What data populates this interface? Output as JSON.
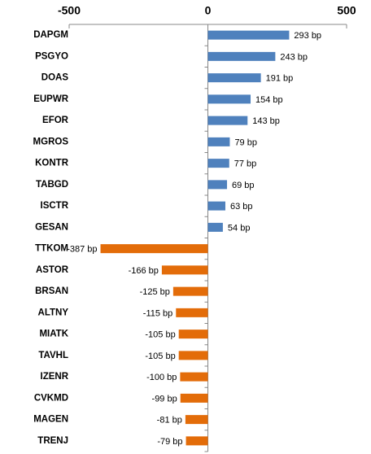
{
  "chart_data": {
    "type": "bar",
    "orientation": "horizontal",
    "categories": [
      "DAPGM",
      "PSGYO",
      "DOAS",
      "EUPWR",
      "EFOR",
      "MGROS",
      "KONTR",
      "TABGD",
      "ISCTR",
      "GESAN",
      "TTKOM",
      "ASTOR",
      "BRSAN",
      "ALTNY",
      "MIATK",
      "TAVHL",
      "IZENR",
      "CVKMD",
      "MAGEN",
      "TRENJ"
    ],
    "values": [
      293,
      243,
      191,
      154,
      143,
      79,
      77,
      69,
      63,
      54,
      -387,
      -166,
      -125,
      -115,
      -105,
      -105,
      -100,
      -99,
      -81,
      -79
    ],
    "value_labels": [
      "293 bp",
      "243 bp",
      "191 bp",
      "154 bp",
      "143 bp",
      "79 bp",
      "77 bp",
      "69 bp",
      "63 bp",
      "54 bp",
      "-387 bp",
      "-166 bp",
      "-125 bp",
      "-115 bp",
      "-105 bp",
      "-105 bp",
      "-100 bp",
      "-99 bp",
      "-81 bp",
      "-79 bp"
    ],
    "colors": [
      "#4f81bd",
      "#4f81bd",
      "#4f81bd",
      "#4f81bd",
      "#4f81bd",
      "#4f81bd",
      "#4f81bd",
      "#4f81bd",
      "#4f81bd",
      "#4f81bd",
      "#e36c09",
      "#e36c09",
      "#e36c09",
      "#e36c09",
      "#e36c09",
      "#e36c09",
      "#e36c09",
      "#e36c09",
      "#e36c09",
      "#e36c09"
    ],
    "xlim": [
      -500,
      500
    ],
    "xticks": [
      -500,
      0,
      500
    ],
    "grid": false
  }
}
